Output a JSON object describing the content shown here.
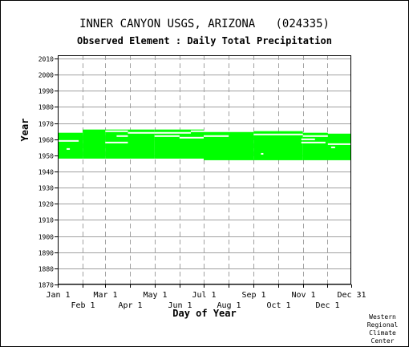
{
  "chart_data": {
    "type": "bar",
    "title": "INNER CANYON USGS, ARIZONA   (024335)",
    "subtitle": "Observed Element : Daily Total Precipitation",
    "xlabel": "Day of Year",
    "ylabel": "Year",
    "credit": "Western\nRegional\nClimate\nCenter",
    "ylim": [
      1870,
      2012
    ],
    "xlim": [
      1,
      365
    ],
    "grid": true,
    "y_ticks": [
      1870,
      1880,
      1890,
      1900,
      1910,
      1920,
      1930,
      1940,
      1950,
      1960,
      1970,
      1980,
      1990,
      2000,
      2010
    ],
    "x_ticks_top_row": [
      {
        "label": "Jan 1",
        "day": 1
      },
      {
        "label": "Mar 1",
        "day": 60
      },
      {
        "label": "May 1",
        "day": 121
      },
      {
        "label": "Jul 1",
        "day": 182
      },
      {
        "label": "Sep 1",
        "day": 244
      },
      {
        "label": "Nov 1",
        "day": 305
      },
      {
        "label": "Dec 31",
        "day": 365
      }
    ],
    "x_ticks_bottom_row": [
      {
        "label": "Feb 1",
        "day": 32
      },
      {
        "label": "Apr 1",
        "day": 91
      },
      {
        "label": "Jun 1",
        "day": 152
      },
      {
        "label": "Aug 1",
        "day": 213
      },
      {
        "label": "Oct 1",
        "day": 274
      },
      {
        "label": "Dec 1",
        "day": 335
      }
    ],
    "series_color": "#00ff00",
    "gap_color": "#ffffff",
    "data_segments": [
      {
        "start_day": 1,
        "end_day": 32,
        "from_year": 1948,
        "to_year": 1964
      },
      {
        "start_day": 32,
        "end_day": 60,
        "from_year": 1948,
        "to_year": 1966
      },
      {
        "start_day": 60,
        "end_day": 121,
        "from_year": 1948,
        "to_year": 1966
      },
      {
        "start_day": 121,
        "end_day": 182,
        "from_year": 1948,
        "to_year": 1966
      },
      {
        "start_day": 182,
        "end_day": 244,
        "from_year": 1947,
        "to_year": 1965
      },
      {
        "start_day": 244,
        "end_day": 305,
        "from_year": 1947,
        "to_year": 1965
      },
      {
        "start_day": 305,
        "end_day": 365,
        "from_year": 1947,
        "to_year": 1964
      }
    ],
    "missing_periods": [
      {
        "start_day": 1,
        "end_day": 27,
        "year": 1959
      },
      {
        "start_day": 12,
        "end_day": 16,
        "year": 1954
      },
      {
        "start_day": 60,
        "end_day": 88,
        "year": 1958
      },
      {
        "start_day": 74,
        "end_day": 88,
        "year": 1962
      },
      {
        "start_day": 60,
        "end_day": 88,
        "year": 1965
      },
      {
        "start_day": 88,
        "end_day": 121,
        "year": 1964
      },
      {
        "start_day": 121,
        "end_day": 152,
        "year": 1962
      },
      {
        "start_day": 121,
        "end_day": 166,
        "year": 1964
      },
      {
        "start_day": 152,
        "end_day": 182,
        "year": 1961
      },
      {
        "start_day": 166,
        "end_day": 182,
        "year": 1965
      },
      {
        "start_day": 182,
        "end_day": 213,
        "year": 1962
      },
      {
        "start_day": 182,
        "end_day": 244,
        "year": 1965
      },
      {
        "start_day": 244,
        "end_day": 305,
        "year": 1963
      },
      {
        "start_day": 253,
        "end_day": 256,
        "year": 1951
      },
      {
        "start_day": 305,
        "end_day": 336,
        "year": 1962
      },
      {
        "start_day": 303,
        "end_day": 320,
        "year": 1960
      },
      {
        "start_day": 303,
        "end_day": 333,
        "year": 1958
      },
      {
        "start_day": 336,
        "end_day": 365,
        "year": 1957
      },
      {
        "start_day": 336,
        "end_day": 365,
        "year": 1964
      },
      {
        "start_day": 340,
        "end_day": 345,
        "year": 1955
      }
    ]
  }
}
